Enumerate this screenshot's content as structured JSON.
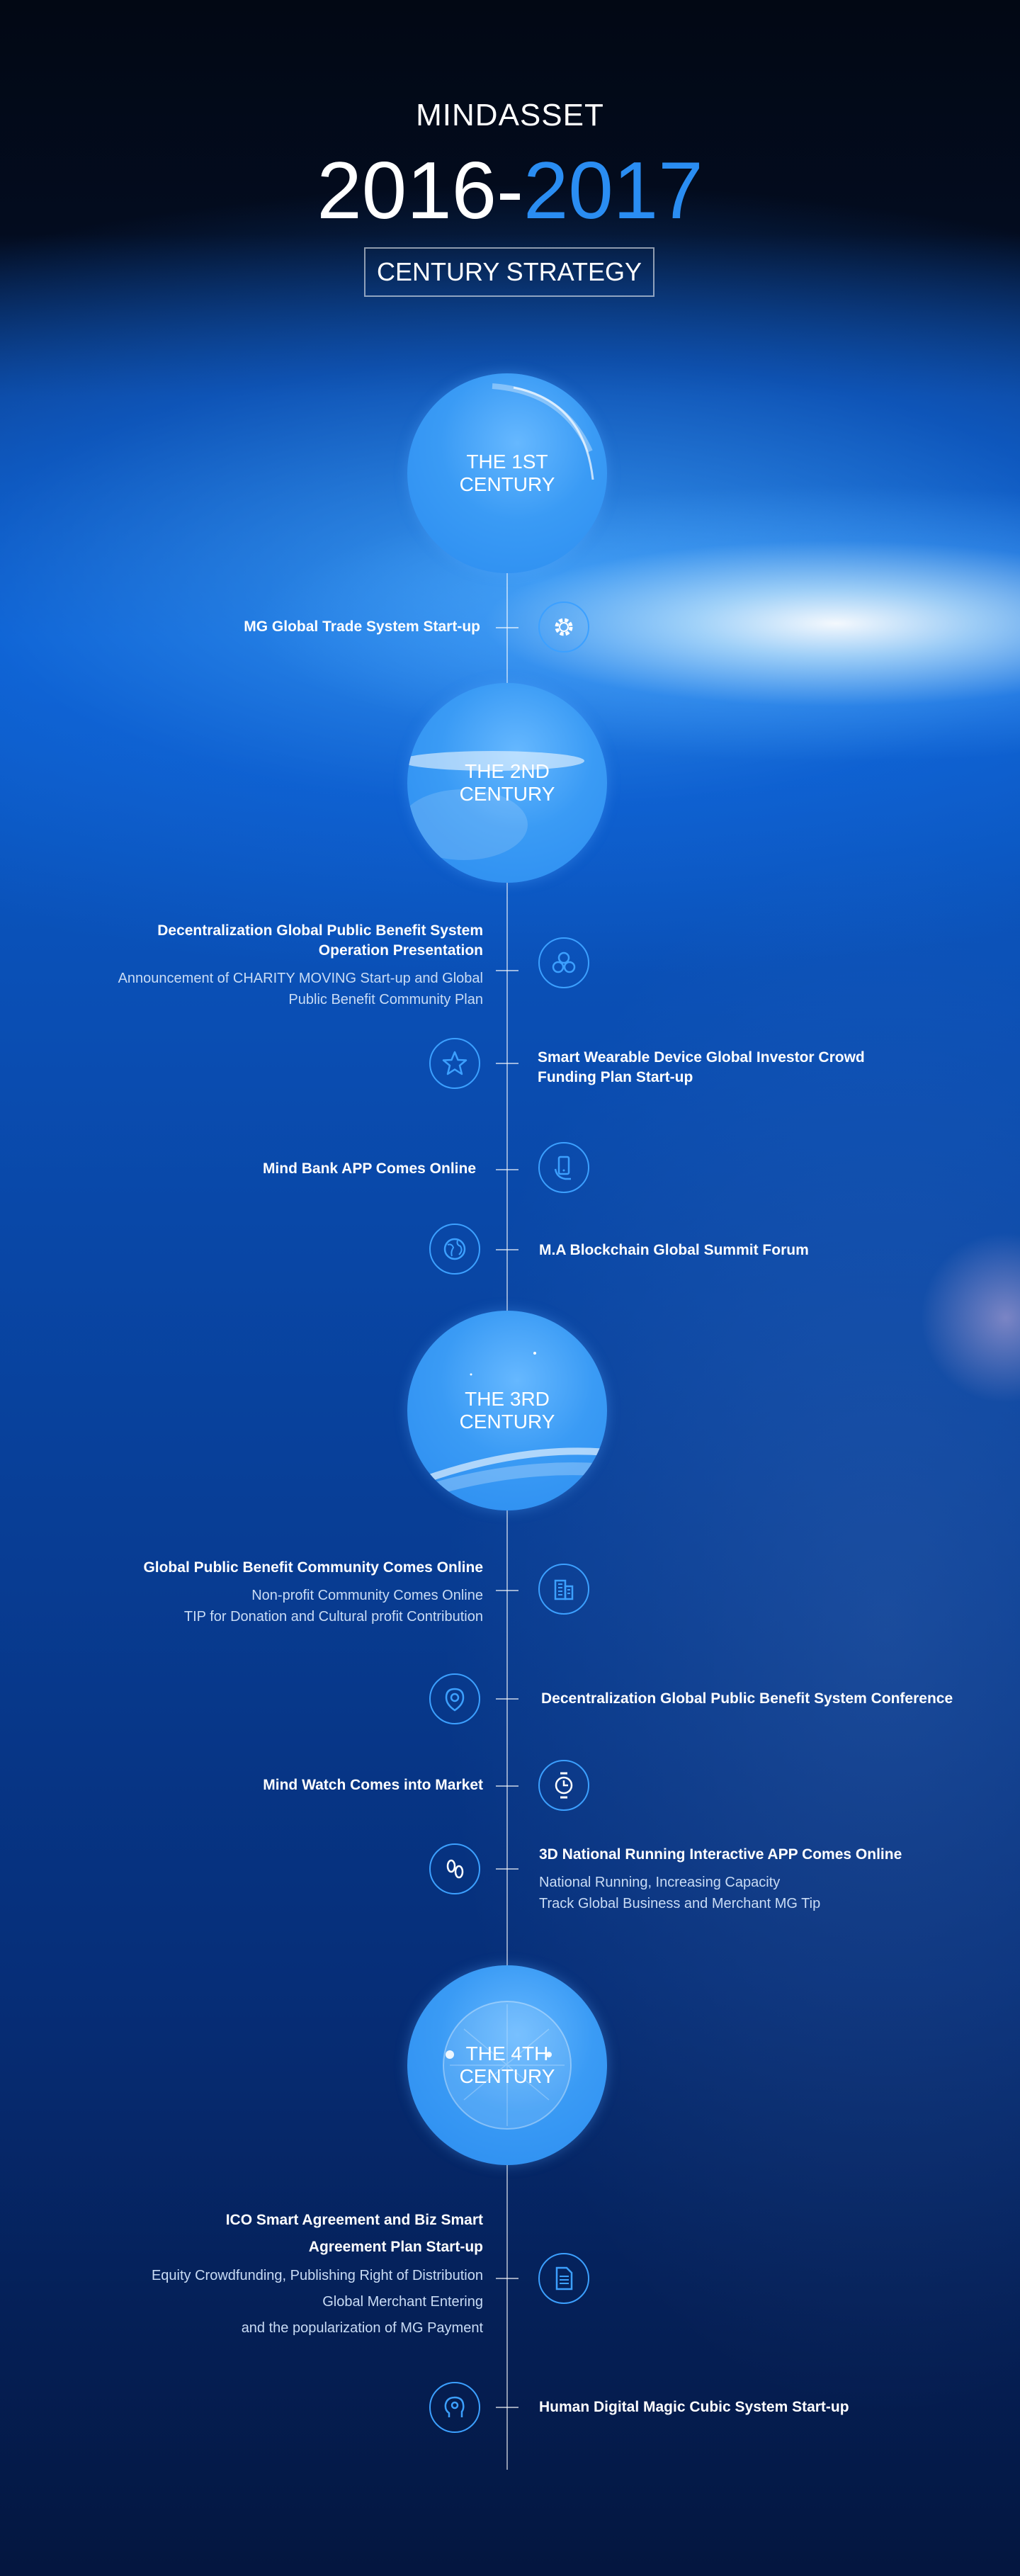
{
  "header": {
    "brand": "MINDASSET",
    "years_main": "2016-",
    "years_accent": "2017",
    "subtitle": "CENTURY STRATEGY"
  },
  "centuries": [
    {
      "label_line1": "THE 1ST",
      "label_line2": "CENTURY"
    },
    {
      "label_line1": "THE 2ND",
      "label_line2": "CENTURY"
    },
    {
      "label_line1": "THE 3RD",
      "label_line2": "CENTURY"
    },
    {
      "label_line1": "THE 4TH",
      "label_line2": "CENTURY"
    }
  ],
  "events": [
    {
      "title": "MG Global Trade System Start-up",
      "icon": "gear-icon"
    },
    {
      "title_line1": "Decentralization Global Public Benefit System",
      "title_line2": "Operation Presentation",
      "sub_line1": "Announcement of CHARITY MOVING Start-up and Global",
      "sub_line2": "Public Benefit Community Plan",
      "icon": "community-circles-icon"
    },
    {
      "title_line1": "Smart Wearable Device Global Investor Crowd",
      "title_line2": "Funding Plan Start-up",
      "icon": "star-icon"
    },
    {
      "title": "Mind Bank APP Comes Online",
      "icon": "phone-hand-icon"
    },
    {
      "title": "M.A Blockchain Global Summit Forum",
      "icon": "globe-icon"
    },
    {
      "title": "Global Public Benefit Community Comes Online",
      "sub_line1": "Non-profit Community Comes Online",
      "sub_line2": "TIP for Donation and Cultural profit Contribution",
      "icon": "building-icon"
    },
    {
      "title": "Decentralization Global Public Benefit System Conference",
      "icon": "target-icon"
    },
    {
      "title": "Mind Watch Comes into Market",
      "icon": "watch-icon"
    },
    {
      "title": "3D National Running Interactive APP Comes Online",
      "sub_line1": "National Running, Increasing Capacity",
      "sub_line2": "Track Global Business and Merchant MG Tip",
      "icon": "footprints-icon"
    },
    {
      "title_line1": "ICO Smart Agreement and Biz Smart",
      "title_line2": "Agreement Plan Start-up",
      "sub_line1": "Equity Crowdfunding, Publishing Right of Distribution",
      "sub_line2": "Global Merchant Entering",
      "sub_line3": "and the popularization of MG Payment",
      "icon": "document-icon"
    },
    {
      "title": "Human Digital Magic Cubic System Start-up",
      "icon": "head-gear-icon"
    }
  ]
}
